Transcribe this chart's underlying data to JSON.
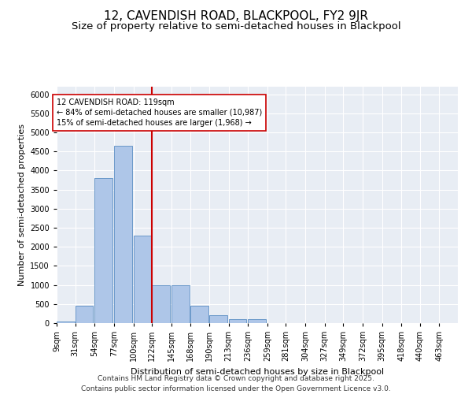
{
  "title1": "12, CAVENDISH ROAD, BLACKPOOL, FY2 9JR",
  "title2": "Size of property relative to semi-detached houses in Blackpool",
  "xlabel": "Distribution of semi-detached houses by size in Blackpool",
  "ylabel": "Number of semi-detached properties",
  "bin_labels": [
    "9sqm",
    "31sqm",
    "54sqm",
    "77sqm",
    "100sqm",
    "122sqm",
    "145sqm",
    "168sqm",
    "190sqm",
    "213sqm",
    "236sqm",
    "259sqm",
    "281sqm",
    "304sqm",
    "327sqm",
    "349sqm",
    "372sqm",
    "395sqm",
    "418sqm",
    "440sqm",
    "463sqm"
  ],
  "bin_left": [
    9,
    31,
    54,
    77,
    100,
    122,
    145,
    168,
    190,
    213,
    236,
    259,
    281,
    304,
    327,
    349,
    372,
    395,
    418,
    440,
    463
  ],
  "bar_heights": [
    50,
    450,
    3800,
    4650,
    2300,
    1000,
    1000,
    450,
    210,
    110,
    100,
    0,
    0,
    0,
    0,
    0,
    0,
    0,
    0,
    0,
    0
  ],
  "bar_color": "#aec6e8",
  "bar_edge_color": "#5b8ec4",
  "vline_x": 122,
  "vline_color": "#cc0000",
  "annotation_title": "12 CAVENDISH ROAD: 119sqm",
  "annotation_line1": "← 84% of semi-detached houses are smaller (10,987)",
  "annotation_line2": "15% of semi-detached houses are larger (1,968) →",
  "annotation_box_color": "#cc0000",
  "ylim": [
    0,
    6200
  ],
  "yticks": [
    0,
    500,
    1000,
    1500,
    2000,
    2500,
    3000,
    3500,
    4000,
    4500,
    5000,
    5500,
    6000
  ],
  "bg_color": "#e8edf4",
  "footer": "Contains HM Land Registry data © Crown copyright and database right 2025.\nContains public sector information licensed under the Open Government Licence v3.0.",
  "title_fontsize": 11,
  "subtitle_fontsize": 9.5,
  "axis_label_fontsize": 8,
  "tick_fontsize": 7,
  "footer_fontsize": 6.5,
  "annot_fontsize": 7
}
